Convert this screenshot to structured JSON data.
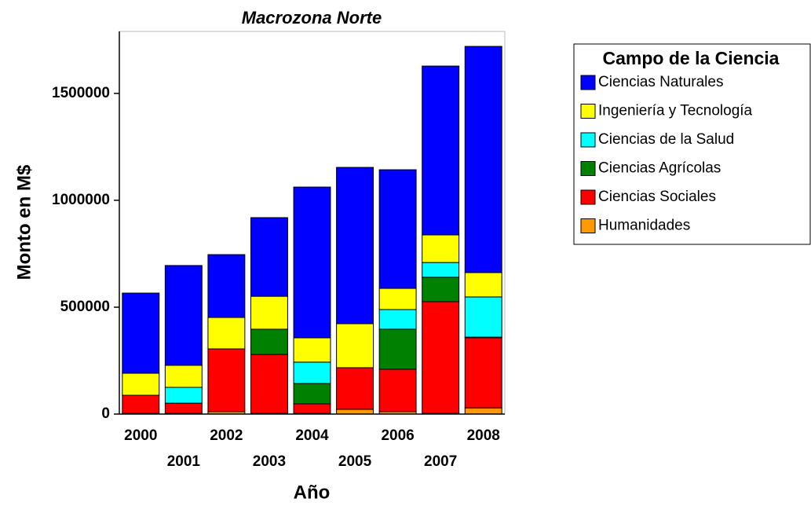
{
  "chart_data": {
    "type": "stacked_bar",
    "title": "Macrozona Norte",
    "xlabel": "Año",
    "ylabel": "Monto en M$",
    "legend_title": "Campo de la Ciencia",
    "legend": "right",
    "categories": [
      "2000",
      "2001",
      "2002",
      "2003",
      "2004",
      "2005",
      "2006",
      "2007",
      "2008"
    ],
    "series": [
      {
        "name": "Ciencias Naturales",
        "color": "#0000ff",
        "values": [
          375000,
          467000,
          294000,
          368000,
          705000,
          731000,
          555000,
          790000,
          1058000
        ]
      },
      {
        "name": "Ingeniería y Tecnología",
        "color": "#ffff00",
        "values": [
          103000,
          103000,
          147000,
          154000,
          114000,
          206000,
          99000,
          129000,
          114000
        ]
      },
      {
        "name": "Ciencias de la Salud",
        "color": "#00ffff",
        "values": [
          0,
          74000,
          0,
          0,
          100000,
          0,
          92000,
          69000,
          188000
        ]
      },
      {
        "name": "Ciencias Agrícolas",
        "color": "#008000",
        "values": [
          0,
          0,
          0,
          118000,
          95000,
          0,
          187000,
          114000,
          3000
        ]
      },
      {
        "name": "Ciencias Sociales",
        "color": "#ff0000",
        "values": [
          85000,
          48000,
          294000,
          276000,
          45000,
          195000,
          199000,
          523000,
          328000
        ]
      },
      {
        "name": "Humanidades",
        "color": "#ff9900",
        "values": [
          3000,
          3000,
          11000,
          3000,
          3000,
          22000,
          11000,
          3000,
          29000
        ]
      }
    ],
    "ylim": [
      0,
      1790000
    ],
    "yticks": [
      0,
      500000,
      1000000,
      1500000
    ]
  }
}
